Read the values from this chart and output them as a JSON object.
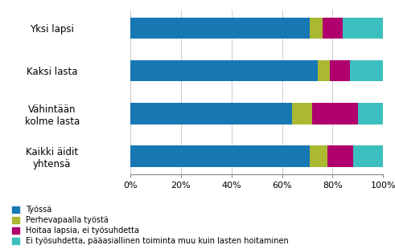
{
  "categories": [
    "Yksi lapsi",
    "Kaksi lasta",
    "Vähintään\nkolme lasta",
    "Kaikki äidit\nyhtensä"
  ],
  "series": [
    {
      "label": "Työssä",
      "color": "#1878b4",
      "values": [
        71,
        74,
        64,
        71
      ]
    },
    {
      "label": "Perhevapaalla työstä",
      "color": "#aab832",
      "values": [
        5,
        5,
        8,
        7
      ]
    },
    {
      "label": "Hoitaa lapsia, ei työsuhdetta",
      "color": "#b0006e",
      "values": [
        8,
        8,
        18,
        10
      ]
    },
    {
      "label": "Ei työsuhdetta, pääasiallinen toiminta muu kuin lasten hoitaminen",
      "color": "#3dbfbf",
      "values": [
        16,
        13,
        10,
        12
      ]
    }
  ],
  "xlim": [
    0,
    100
  ],
  "xtick_labels": [
    "0%",
    "20%",
    "40%",
    "60%",
    "80%",
    "100%"
  ],
  "xtick_values": [
    0,
    20,
    40,
    60,
    80,
    100
  ],
  "background_color": "#ffffff",
  "bar_height": 0.5,
  "legend_fontsize": 7.0,
  "tick_fontsize": 8.0,
  "label_fontsize": 8.5
}
